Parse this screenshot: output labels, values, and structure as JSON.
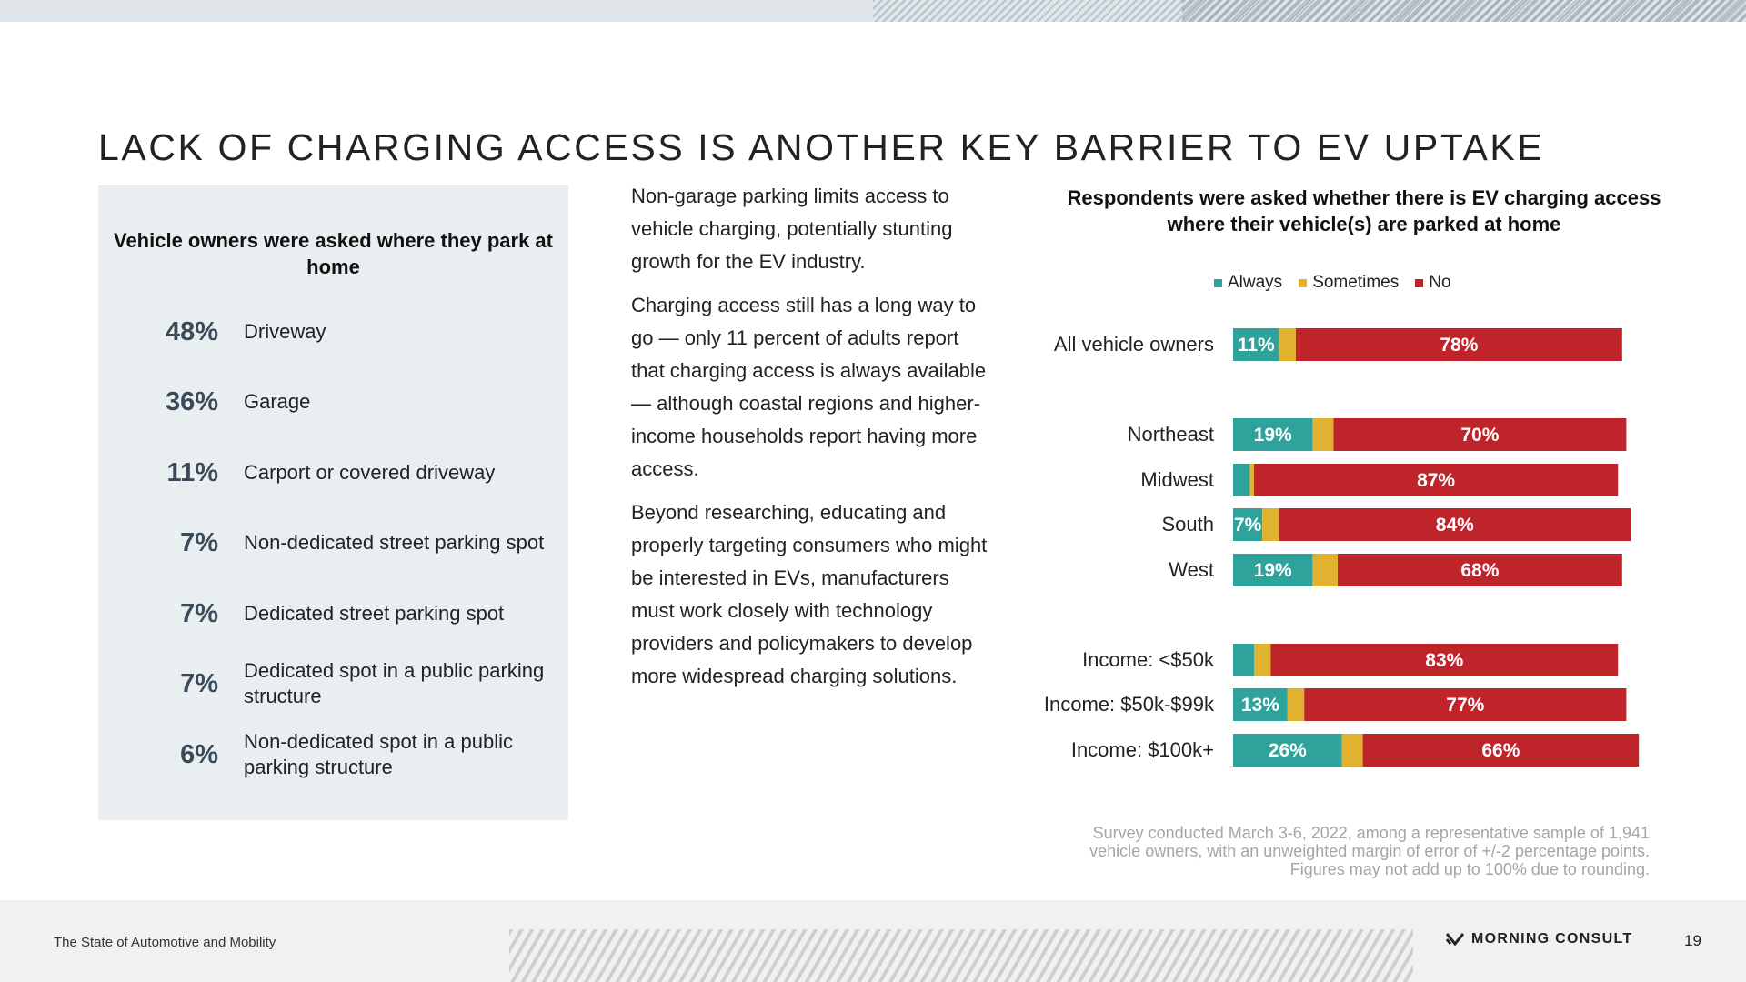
{
  "colors": {
    "always": "#2ea29b",
    "sometimes": "#e0b22f",
    "no": "#c0242b"
  },
  "title": "LACK OF CHARGING ACCESS IS ANOTHER KEY BARRIER TO EV UPTAKE",
  "left_panel": {
    "title": "Vehicle owners were asked where they park at home",
    "items": [
      {
        "pct": "48%",
        "label": "Driveway"
      },
      {
        "pct": "36%",
        "label": "Garage"
      },
      {
        "pct": "11%",
        "label": "Carport or covered driveway"
      },
      {
        "pct": "7%",
        "label": "Non-dedicated street parking spot"
      },
      {
        "pct": "7%",
        "label": "Dedicated street parking spot"
      },
      {
        "pct": "7%",
        "label": "Dedicated spot in a public parking structure"
      },
      {
        "pct": "6%",
        "label": "Non-dedicated spot in a public parking structure"
      }
    ]
  },
  "body_text": {
    "p1": "Non-garage parking limits access to vehicle charging, potentially stunting growth for the EV industry.",
    "p2": "Charging access still has a long way to go — only 11 percent of adults report that charging access is always available — although coastal regions and higher-income households report having more access.",
    "p3": "Beyond researching, educating and properly targeting consumers who might be interested in EVs, manufacturers must work closely with technology providers and policymakers to develop more widespread charging solutions."
  },
  "chart_data": {
    "type": "bar",
    "orientation": "horizontal",
    "stacked": true,
    "title": "Respondents were asked whether there is EV charging access where their vehicle(s) are parked at home",
    "legend": [
      "Always",
      "Sometimes",
      "No"
    ],
    "categories": [
      "All vehicle owners",
      "Northeast",
      "Midwest",
      "South",
      "West",
      "Income: <$50k",
      "Income: $50k-$99k",
      "Income: $100k+"
    ],
    "series": [
      {
        "name": "Always",
        "values": [
          11,
          19,
          4,
          7,
          19,
          5,
          13,
          26
        ]
      },
      {
        "name": "Sometimes",
        "values": [
          4,
          5,
          1,
          4,
          6,
          4,
          4,
          5
        ]
      },
      {
        "name": "No",
        "values": [
          78,
          70,
          87,
          84,
          68,
          83,
          77,
          66
        ]
      }
    ],
    "data_labels": {
      "Always": [
        "11%",
        "19%",
        "",
        "7%",
        "19%",
        "",
        "13%",
        "26%"
      ],
      "Sometimes": [
        "",
        "",
        "",
        "",
        "",
        "",
        "",
        ""
      ],
      "No": [
        "78%",
        "70%",
        "87%",
        "84%",
        "68%",
        "83%",
        "77%",
        "66%"
      ]
    }
  },
  "footnote": "Survey conducted March 3-6, 2022, among a representative sample of 1,941 vehicle owners, with an unweighted margin of error of +/-2 percentage points. Figures may not add up to 100% due to rounding.",
  "footer": {
    "report_name": "The State of Automotive and Mobility",
    "brand": "MORNING CONSULT",
    "page_number": "19"
  }
}
